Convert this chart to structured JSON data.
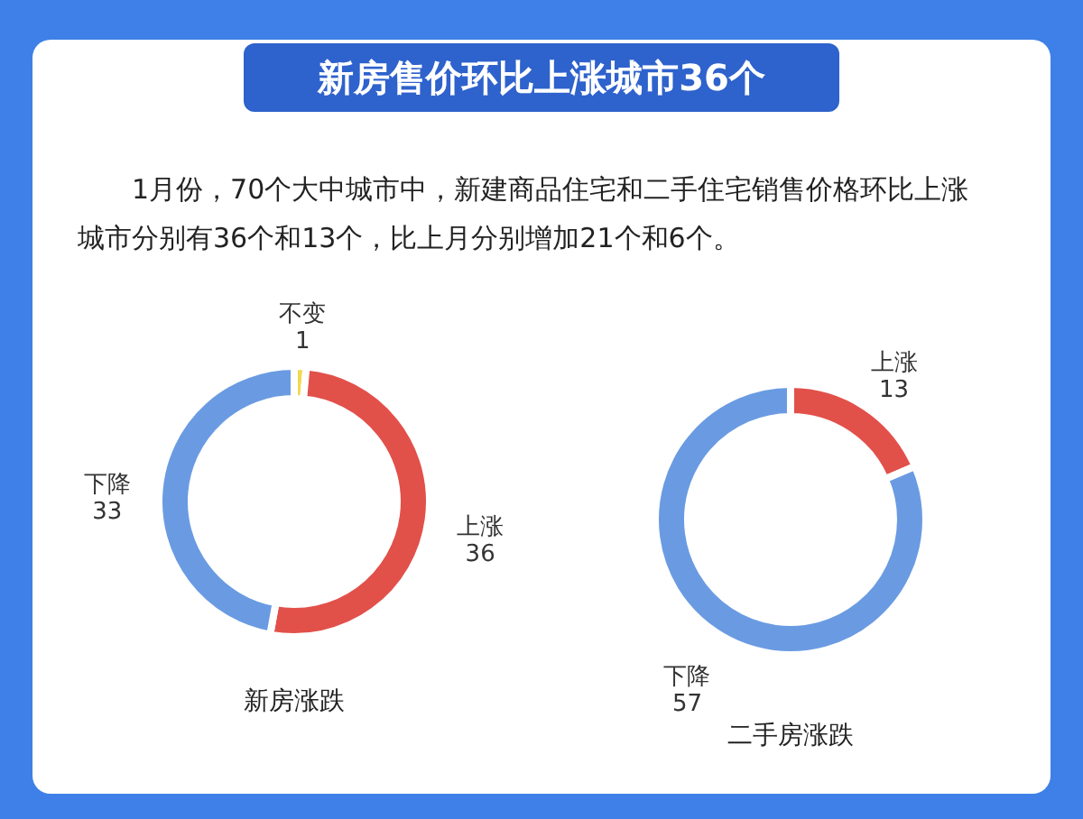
{
  "chart_data": [
    {
      "type": "other",
      "title": "新房售价环比上涨城市36个",
      "annotations": [
        "1月份，70个大中城市中，新建商品住宅和二手住宅销售价格环比上涨城市分别有36个和13个，比上月分别增加21个和6个。"
      ]
    },
    {
      "type": "donut",
      "title": "新房涨跌",
      "categories": [
        "不变",
        "上涨",
        "下降"
      ],
      "values": [
        1,
        36,
        33
      ],
      "colors": [
        "#f2d94e",
        "#e2504a",
        "#6a9be2"
      ],
      "data_labels": true
    },
    {
      "type": "donut",
      "title": "二手房涨跌",
      "categories": [
        "上涨",
        "下降"
      ],
      "values": [
        13,
        57
      ],
      "colors": [
        "#e2504a",
        "#6a9be2"
      ],
      "data_labels": true
    }
  ]
}
